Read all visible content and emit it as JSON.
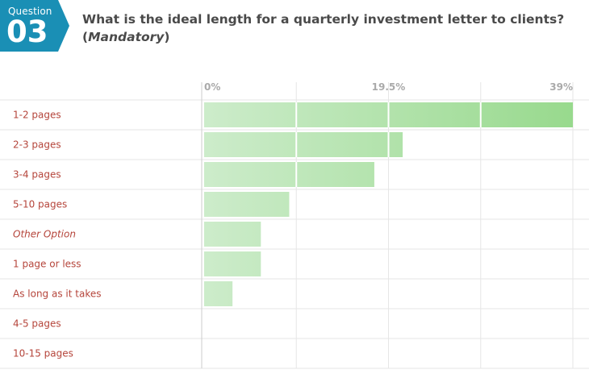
{
  "question": {
    "badge_label": "Question",
    "number": "03",
    "text": "What is the ideal length for a quarterly investment letter to clients?",
    "mandatory_open": "(",
    "mandatory": "Mandatory",
    "mandatory_close": ")"
  },
  "colors": {
    "badge": "#1a8fb5",
    "bar_light": "#cdeccb",
    "bar_dark": "#97d98c",
    "label": "#b5453b",
    "tick": "#aaaaaa",
    "grid": "#e6e6e6"
  },
  "chart_data": {
    "type": "bar",
    "orientation": "horizontal",
    "categories": [
      "1-2 pages",
      "2-3 pages",
      "3-4 pages",
      "5-10 pages",
      "Other Option",
      "1 page or less",
      "As long as it takes",
      "4-5 pages",
      "10-15 pages"
    ],
    "italic_categories": [
      "Other Option"
    ],
    "values": [
      39,
      21,
      18,
      9,
      6,
      6,
      3,
      0,
      0
    ],
    "xlim": [
      0,
      39
    ],
    "ticks": [
      0,
      19.5,
      39
    ],
    "tick_labels": [
      "0%",
      "19.5%",
      "39%"
    ],
    "grid": true
  }
}
